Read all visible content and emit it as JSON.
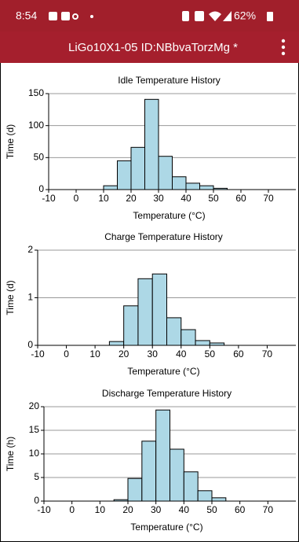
{
  "status_bar": {
    "time": "8:54",
    "battery": "62%"
  },
  "app_bar": {
    "title": "LiGo10X1-05 ID:NBbvaTorzMg *"
  },
  "chart_data": [
    {
      "type": "histogram",
      "title": "Idle Temperature History",
      "x_label": "Temperature (°C)",
      "y_label": "Time (d)",
      "bins": [
        10,
        15,
        20,
        25,
        30,
        35,
        40,
        45,
        50,
        55
      ],
      "values": [
        6,
        45,
        66,
        141,
        52,
        20,
        10,
        6,
        2
      ],
      "color": "#add8e6",
      "xlim": [
        -10,
        80
      ],
      "xticks": [
        -10,
        0,
        10,
        20,
        30,
        40,
        50,
        60,
        70
      ],
      "ylim": [
        0,
        150
      ],
      "yticks": [
        0,
        50,
        100,
        150
      ],
      "grid": true
    },
    {
      "type": "histogram",
      "title": "Charge Temperature History",
      "x_label": "Temperature (°C)",
      "y_label": "Time (d)",
      "bins": [
        15,
        20,
        25,
        30,
        35,
        40,
        45,
        50,
        55
      ],
      "values": [
        0.08,
        0.83,
        1.4,
        1.5,
        0.58,
        0.33,
        0.1,
        0.05
      ],
      "color": "#add8e6",
      "xlim": [
        -10,
        80
      ],
      "xticks": [
        -10,
        0,
        10,
        20,
        30,
        40,
        50,
        60,
        70
      ],
      "ylim": [
        0,
        2
      ],
      "yticks": [
        0,
        1,
        2
      ],
      "grid": true
    },
    {
      "type": "histogram",
      "title": "Discharge Temperature History",
      "x_label": "Temperature (°C)",
      "y_label": "Time (h)",
      "bins": [
        15,
        20,
        25,
        30,
        35,
        40,
        45,
        50,
        55
      ],
      "values": [
        0.3,
        4.8,
        12.7,
        19.3,
        11,
        6.2,
        2.2,
        0.7
      ],
      "color": "#add8e6",
      "xlim": [
        -10,
        80
      ],
      "xticks": [
        -10,
        0,
        10,
        20,
        30,
        40,
        50,
        60,
        70
      ],
      "ylim": [
        0,
        20
      ],
      "yticks": [
        0,
        5,
        10,
        15,
        20
      ],
      "grid": true
    }
  ]
}
